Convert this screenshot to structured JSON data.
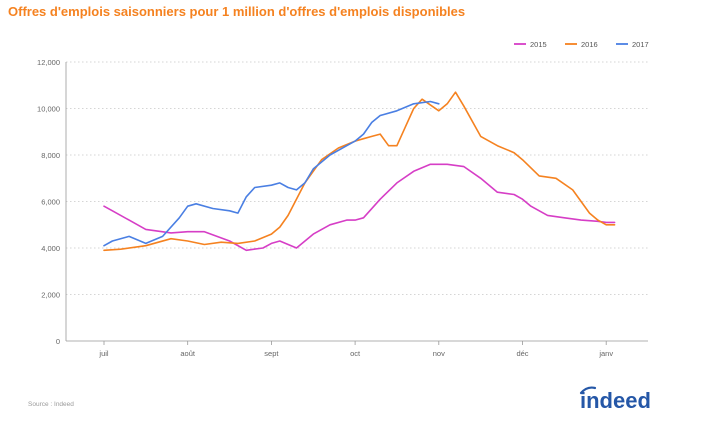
{
  "title": "Offres d'emplois saisonniers pour 1 million d'offres d'emplois disponibles",
  "source": "Source : Indeed",
  "brand": "indeed",
  "colors": {
    "title": "#f58220",
    "brand": "#2557a7"
  },
  "chart_data": {
    "type": "line",
    "title": "Offres d'emplois saisonniers pour 1 million d'offres d'emplois disponibles",
    "xlabel": "",
    "ylabel": "",
    "categories": [
      "juil",
      "août",
      "sept",
      "oct",
      "nov",
      "déc",
      "janv"
    ],
    "xlim": [
      0,
      6.4
    ],
    "ylim": [
      0,
      12000
    ],
    "yticks": [
      0,
      2000,
      4000,
      6000,
      8000,
      10000,
      12000
    ],
    "ytick_labels": [
      "0",
      "2,000",
      "4,000",
      "6,000",
      "8,000",
      "10,000",
      "12,000"
    ],
    "grid": true,
    "legend": "top-right",
    "series": [
      {
        "name": "2015",
        "color": "#d63ec6",
        "x": [
          0,
          0.1,
          0.3,
          0.5,
          0.8,
          1.0,
          1.2,
          1.5,
          1.7,
          1.9,
          2.0,
          2.1,
          2.3,
          2.5,
          2.7,
          2.9,
          3.0,
          3.1,
          3.3,
          3.5,
          3.7,
          3.9,
          4.0,
          4.1,
          4.3,
          4.5,
          4.7,
          4.9,
          5.0,
          5.1,
          5.3,
          5.5,
          5.7,
          5.9,
          6.0,
          6.1
        ],
        "y": [
          5800,
          5600,
          5200,
          4800,
          4650,
          4700,
          4700,
          4300,
          3900,
          4000,
          4200,
          4300,
          4000,
          4600,
          5000,
          5200,
          5200,
          5300,
          6100,
          6800,
          7300,
          7600,
          7600,
          7600,
          7500,
          7000,
          6400,
          6300,
          6100,
          5800,
          5400,
          5300,
          5200,
          5150,
          5100,
          5100
        ]
      },
      {
        "name": "2016",
        "color": "#f58220",
        "x": [
          0,
          0.2,
          0.5,
          0.8,
          1.0,
          1.2,
          1.4,
          1.6,
          1.8,
          2.0,
          2.1,
          2.2,
          2.4,
          2.6,
          2.8,
          3.0,
          3.1,
          3.2,
          3.3,
          3.4,
          3.5,
          3.6,
          3.7,
          3.8,
          4.0,
          4.1,
          4.2,
          4.3,
          4.5,
          4.7,
          4.9,
          5.0,
          5.2,
          5.4,
          5.6,
          5.8,
          5.9,
          6.0,
          6.1
        ],
        "y": [
          3900,
          3950,
          4100,
          4400,
          4300,
          4150,
          4250,
          4200,
          4300,
          4600,
          4900,
          5400,
          6800,
          7800,
          8300,
          8600,
          8700,
          8800,
          8900,
          8400,
          8400,
          9200,
          10000,
          10400,
          9900,
          10200,
          10700,
          10100,
          8800,
          8400,
          8100,
          7800,
          7100,
          7000,
          6500,
          5500,
          5200,
          5000,
          5000
        ]
      },
      {
        "name": "2017",
        "color": "#4a7fe3",
        "x": [
          0,
          0.1,
          0.3,
          0.5,
          0.7,
          0.9,
          1.0,
          1.1,
          1.3,
          1.5,
          1.6,
          1.7,
          1.8,
          2.0,
          2.1,
          2.2,
          2.3,
          2.4,
          2.5,
          2.7,
          2.9,
          3.0,
          3.1,
          3.2,
          3.3,
          3.5,
          3.7,
          3.9,
          4.0
        ],
        "y": [
          4100,
          4300,
          4500,
          4200,
          4500,
          5300,
          5800,
          5900,
          5700,
          5600,
          5500,
          6200,
          6600,
          6700,
          6800,
          6600,
          6500,
          6800,
          7400,
          8000,
          8400,
          8600,
          8900,
          9400,
          9700,
          9900,
          10200,
          10300,
          10200
        ]
      }
    ]
  }
}
